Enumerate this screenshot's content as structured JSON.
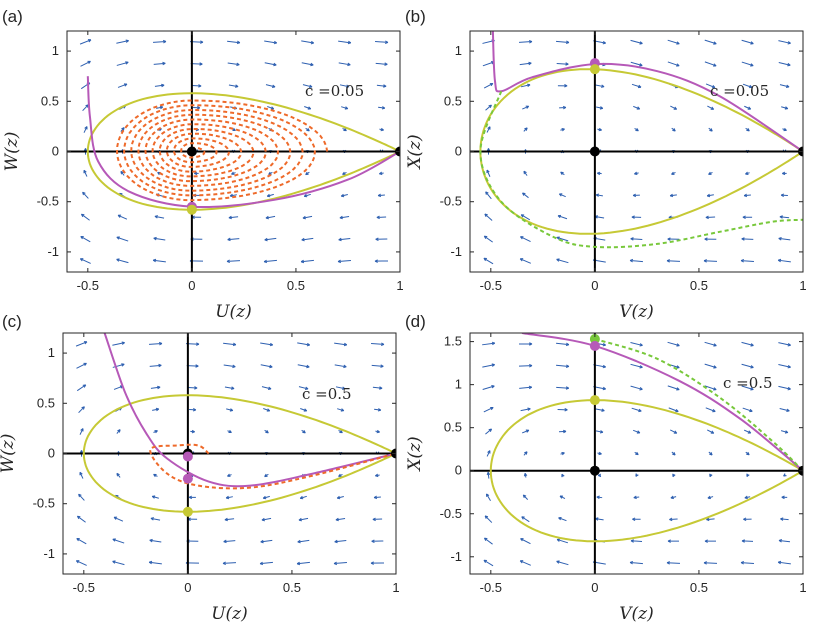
{
  "colors": {
    "purple": "#b659b8",
    "yellow": "#c6c935",
    "orange": "#ee6a2a",
    "green": "#78c83b",
    "quiver": "#2d5fb0",
    "black": "#000000"
  },
  "chart_data": [
    {
      "type": "line",
      "panel": "(a)",
      "xlabel": "U(z)",
      "ylabel": "W(z)",
      "annotation": "c =0.05",
      "xlim": [
        -0.6,
        1.0
      ],
      "ylim": [
        -1.2,
        1.2
      ],
      "xticks": [
        "-0.5",
        "0",
        "0.5",
        "1"
      ],
      "yticks": [
        "-1",
        "-0.5",
        "0",
        "0.5",
        "1"
      ],
      "series": [
        {
          "name": "homoclinic-loop",
          "color": "yellow",
          "style": "solid",
          "type": "closed-loop",
          "x_min": -0.5,
          "y_max": 0.58,
          "y_min": -0.58,
          "through": [
            1,
            0
          ]
        },
        {
          "name": "trajectory",
          "color": "purple",
          "style": "solid",
          "points": [
            [
              -0.5,
              0.75
            ],
            [
              -0.49,
              0.35
            ],
            [
              -0.45,
              -0.1
            ],
            [
              -0.3,
              -0.4
            ],
            [
              0,
              -0.55
            ],
            [
              0.4,
              -0.48
            ],
            [
              0.75,
              -0.28
            ],
            [
              1.0,
              0
            ]
          ]
        },
        {
          "name": "spiral",
          "color": "orange",
          "style": "dashed",
          "type": "spiral",
          "center": [
            0,
            0
          ],
          "outer_x_max": 0.65,
          "outer_y_max": 0.52
        }
      ],
      "points": [
        {
          "x": 0,
          "y": 0,
          "color": "black"
        },
        {
          "x": 1,
          "y": 0,
          "color": "black"
        },
        {
          "x": 0,
          "y": -0.55,
          "color": "purple"
        },
        {
          "x": 0,
          "y": -0.58,
          "color": "yellow"
        }
      ]
    },
    {
      "type": "line",
      "panel": "(b)",
      "xlabel": "V(z)",
      "ylabel": "X(z)",
      "annotation": "c =0.05",
      "xlim": [
        -0.6,
        1.0
      ],
      "ylim": [
        -1.2,
        1.2
      ],
      "xticks": [
        "-0.5",
        "0",
        "0.5",
        "1"
      ],
      "yticks": [
        "-1",
        "-0.5",
        "0",
        "0.5",
        "1"
      ],
      "series": [
        {
          "name": "homoclinic-loop",
          "color": "yellow",
          "style": "solid",
          "type": "closed-loop",
          "x_min": -0.55,
          "y_max": 0.82,
          "y_min": -0.82,
          "through": [
            1,
            0
          ]
        },
        {
          "name": "trajectory",
          "color": "purple",
          "style": "solid",
          "points": [
            [
              -0.49,
              1.2
            ],
            [
              -0.48,
              0.7
            ],
            [
              -0.45,
              0.6
            ],
            [
              -0.3,
              0.74
            ],
            [
              0,
              0.87
            ],
            [
              0.3,
              0.8
            ],
            [
              0.6,
              0.55
            ],
            [
              1.0,
              0
            ]
          ]
        },
        {
          "name": "dashed-branch",
          "color": "green",
          "style": "dashed",
          "points": [
            [
              -0.45,
              0.6
            ],
            [
              -0.55,
              0.0
            ],
            [
              -0.45,
              -0.5
            ],
            [
              -0.2,
              -0.85
            ],
            [
              0,
              -0.95
            ],
            [
              0.3,
              -0.92
            ],
            [
              0.6,
              -0.8
            ],
            [
              0.85,
              -0.7
            ],
            [
              1.0,
              -0.68
            ]
          ]
        }
      ],
      "points": [
        {
          "x": 0,
          "y": 0,
          "color": "black"
        },
        {
          "x": 1,
          "y": 0,
          "color": "black"
        },
        {
          "x": 0,
          "y": 0.88,
          "color": "purple"
        },
        {
          "x": 0,
          "y": 0.82,
          "color": "yellow"
        }
      ]
    },
    {
      "type": "line",
      "panel": "(c)",
      "xlabel": "U(z)",
      "ylabel": "W(z)",
      "annotation": "c =0.5",
      "xlim": [
        -0.6,
        1.0
      ],
      "ylim": [
        -1.2,
        1.2
      ],
      "xticks": [
        "-0.5",
        "0",
        "0.5",
        "1"
      ],
      "yticks": [
        "-1",
        "-0.5",
        "0",
        "0.5",
        "1"
      ],
      "series": [
        {
          "name": "homoclinic-loop",
          "color": "yellow",
          "style": "solid",
          "type": "closed-loop",
          "x_min": -0.5,
          "y_max": 0.58,
          "y_min": -0.58,
          "through": [
            1,
            0
          ]
        },
        {
          "name": "trajectory",
          "color": "purple",
          "style": "solid",
          "points": [
            [
              -0.4,
              1.2
            ],
            [
              -0.3,
              0.6
            ],
            [
              -0.2,
              0.2
            ],
            [
              -0.1,
              -0.05
            ],
            [
              0.1,
              -0.28
            ],
            [
              0.3,
              -0.32
            ],
            [
              0.6,
              -0.2
            ],
            [
              1.0,
              0
            ]
          ]
        },
        {
          "name": "spiral",
          "color": "orange",
          "style": "dashed",
          "points": [
            [
              0.1,
              0.0
            ],
            [
              0.05,
              0.08
            ],
            [
              -0.05,
              0.08
            ],
            [
              -0.18,
              0.04
            ],
            [
              -0.1,
              -0.2
            ],
            [
              0.05,
              -0.32
            ],
            [
              0.3,
              -0.34
            ],
            [
              0.6,
              -0.22
            ],
            [
              1.0,
              0
            ]
          ]
        }
      ],
      "points": [
        {
          "x": 0,
          "y": 0,
          "color": "black"
        },
        {
          "x": 1,
          "y": 0,
          "color": "black"
        },
        {
          "x": 0,
          "y": -0.03,
          "color": "purple"
        },
        {
          "x": 0,
          "y": -0.25,
          "color": "purple"
        },
        {
          "x": 0,
          "y": -0.58,
          "color": "yellow"
        }
      ]
    },
    {
      "type": "line",
      "panel": "(d)",
      "xlabel": "V(z)",
      "ylabel": "X(z)",
      "annotation": "c =0.5",
      "xlim": [
        -0.6,
        1.0
      ],
      "ylim": [
        -1.2,
        1.6
      ],
      "xticks": [
        "-0.5",
        "0",
        "0.5",
        "1"
      ],
      "yticks": [
        "-1",
        "-0.5",
        "0",
        "0.5",
        "1",
        "1.5"
      ],
      "series": [
        {
          "name": "homoclinic-loop",
          "color": "yellow",
          "style": "solid",
          "type": "closed-loop",
          "x_min": -0.5,
          "y_max": 0.82,
          "y_min": -0.82,
          "through": [
            1,
            0
          ]
        },
        {
          "name": "trajectory",
          "color": "purple",
          "style": "solid",
          "points": [
            [
              -0.35,
              1.6
            ],
            [
              0,
              1.45
            ],
            [
              0.4,
              1.05
            ],
            [
              0.7,
              0.6
            ],
            [
              1.0,
              0
            ]
          ]
        },
        {
          "name": "dashed-branch",
          "color": "green",
          "style": "dashed",
          "points": [
            [
              0,
              1.53
            ],
            [
              0.3,
              1.3
            ],
            [
              0.6,
              0.85
            ],
            [
              0.85,
              0.35
            ],
            [
              1.0,
              0
            ]
          ]
        }
      ],
      "points": [
        {
          "x": 0,
          "y": 0,
          "color": "black"
        },
        {
          "x": 1,
          "y": 0,
          "color": "black"
        },
        {
          "x": 0,
          "y": 1.53,
          "color": "green"
        },
        {
          "x": 0,
          "y": 1.45,
          "color": "purple"
        },
        {
          "x": 0,
          "y": 0.82,
          "color": "yellow"
        }
      ]
    }
  ]
}
